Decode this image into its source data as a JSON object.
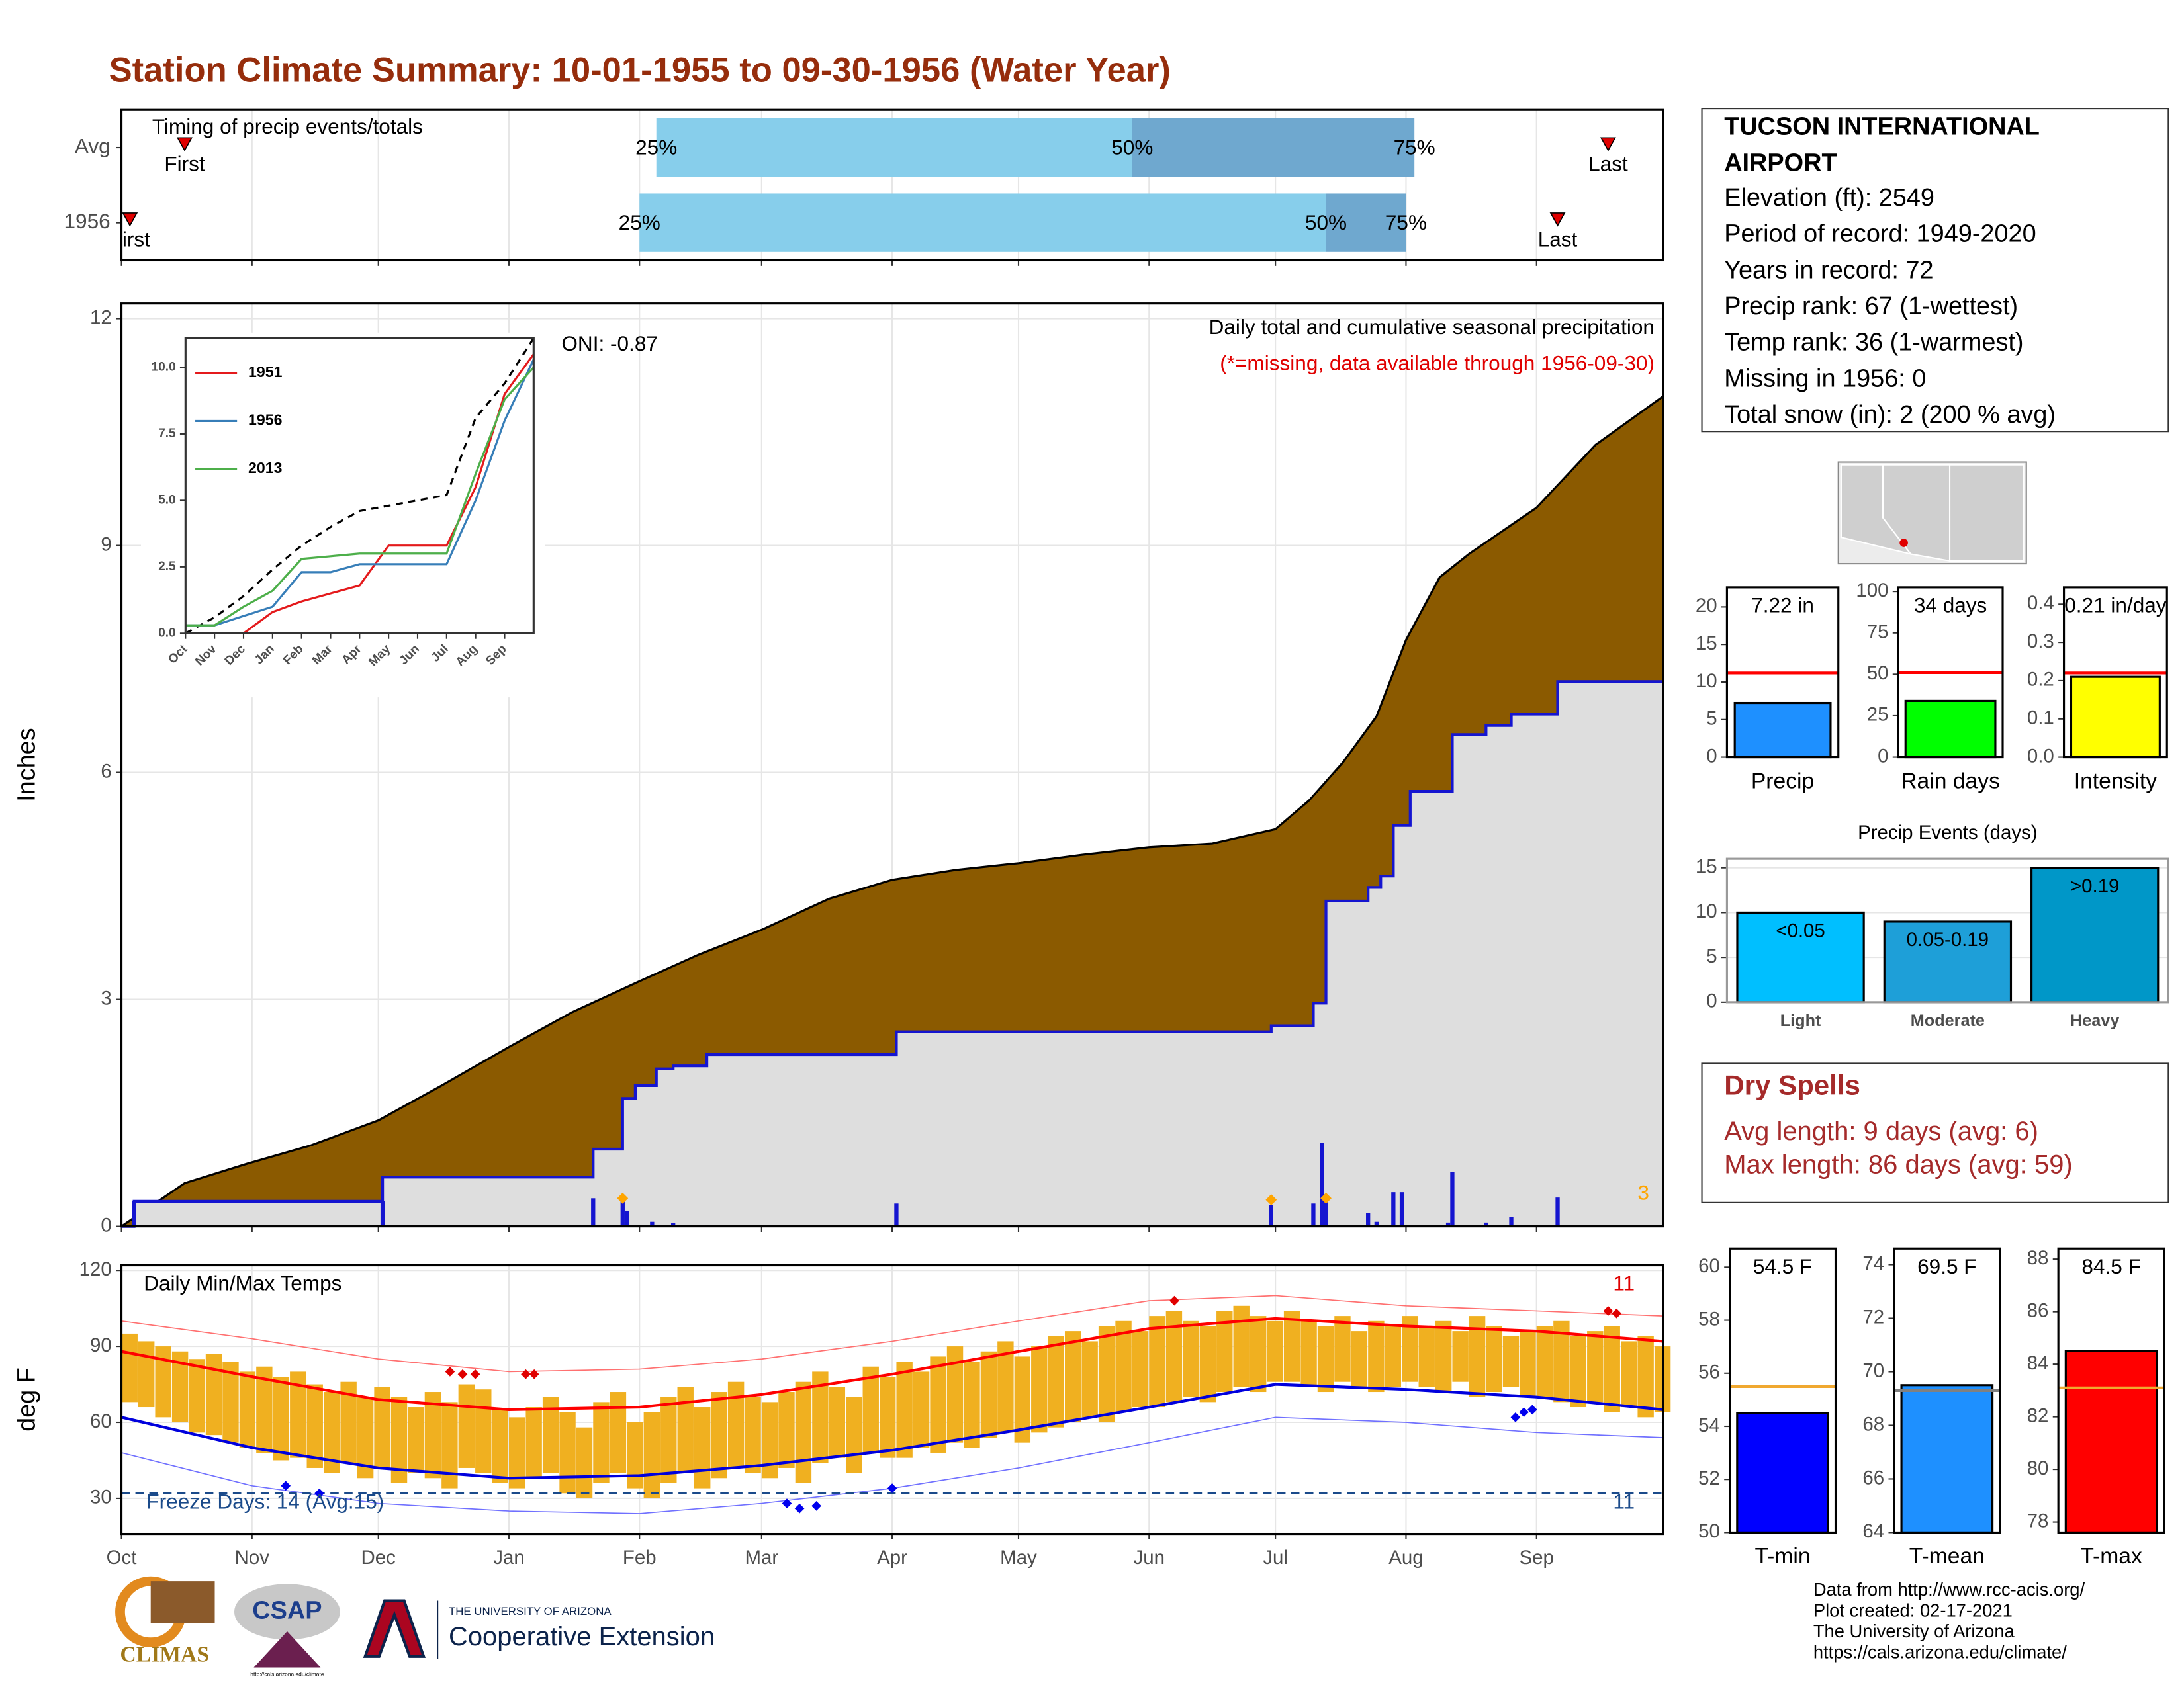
{
  "title": "Station Climate Summary: 10-01-1955 to 09-30-1956 (Water Year)",
  "chart_data": [
    {
      "type": "timeline",
      "title": "Timing of precip events/totals",
      "xlim": [
        0,
        366
      ],
      "xticks": [
        0,
        31,
        61,
        92,
        123,
        152,
        183,
        213,
        244,
        274,
        305,
        336
      ],
      "grid": true,
      "marker_labels": {
        "first": "First",
        "last": "Last",
        "q25": "25%",
        "q50": "50%",
        "q75": "75%"
      },
      "rows": [
        {
          "name": "Avg",
          "first": 15,
          "q25": 127,
          "q50": 240,
          "q75": 307,
          "last": 353
        },
        {
          "name": "1956",
          "first": 2,
          "q25": 123,
          "q50": 286,
          "q75": 305,
          "last": 341
        }
      ],
      "colors": {
        "q25_q50": "#87ceeb",
        "q50_q75": "#6fa8cf",
        "marker": "#e00000"
      }
    },
    {
      "type": "area",
      "title": "Daily total and cumulative seasonal precipitation",
      "subtitle": "(*=missing, data available through 1956-09-30)",
      "annotation": "ONI: -0.87",
      "y_label": "Inches",
      "xlim": [
        0,
        366
      ],
      "ylim": [
        0,
        12.2
      ],
      "xticks": [
        0,
        31,
        61,
        92,
        123,
        152,
        183,
        213,
        244,
        274,
        305,
        336
      ],
      "yticks": [
        0,
        3,
        6,
        9,
        12
      ],
      "grid": true,
      "series": [
        {
          "x": [
            0,
            15,
            30,
            45,
            61,
            76,
            92,
            107,
            123,
            137,
            152,
            168,
            183,
            198,
            213,
            228,
            244,
            259,
            274,
            282,
            290,
            298,
            305,
            313,
            320,
            336,
            350,
            366
          ],
          "values": [
            0,
            0.57,
            0.83,
            1.07,
            1.4,
            1.86,
            2.37,
            2.83,
            3.24,
            3.59,
            3.92,
            4.33,
            4.58,
            4.71,
            4.8,
            4.91,
            5.01,
            5.06,
            5.25,
            5.63,
            6.13,
            6.74,
            7.75,
            8.58,
            8.89,
            9.5,
            10.33,
            10.97
          ],
          "color": "#8b5a00"
        },
        {
          "x": [
            0,
            3,
            62,
            112,
            119,
            122,
            127,
            131,
            139,
            184,
            273,
            283,
            286,
            296,
            299,
            302,
            306,
            316,
            324,
            330,
            341,
            366
          ],
          "values": [
            0,
            0.33,
            0.65,
            1.02,
            1.69,
            1.86,
            2.08,
            2.12,
            2.27,
            2.57,
            2.65,
            2.95,
            4.3,
            4.48,
            4.63,
            5.3,
            5.75,
            6.5,
            6.62,
            6.77,
            7.2,
            7.2
          ],
          "color": "#1515d0",
          "fill": "#dedede",
          "step": true
        }
      ],
      "daily": {
        "x": [
          3,
          62,
          112,
          119,
          120,
          126,
          131,
          139,
          184,
          273,
          283,
          285,
          286,
          296,
          298,
          302,
          304,
          315,
          316,
          324,
          330,
          341
        ],
        "values": [
          0.33,
          0.33,
          0.37,
          0.33,
          0.2,
          0.06,
          0.04,
          0.02,
          0.3,
          0.28,
          0.3,
          1.1,
          0.35,
          0.18,
          0.06,
          0.45,
          0.45,
          0.05,
          0.72,
          0.05,
          0.12,
          0.38
        ],
        "color": "#1515d0"
      },
      "events": {
        "x": [
          119,
          273,
          286
        ],
        "values": [
          0.37,
          0.35,
          0.37
        ],
        "color": "#ffa500"
      },
      "snow_days": 3
    },
    {
      "type": "line",
      "x": [
        0,
        1,
        2,
        3,
        4,
        5,
        6,
        7,
        8,
        9,
        10,
        11,
        12
      ],
      "xlim": [
        0,
        12
      ],
      "ylim": [
        0,
        11.1
      ],
      "xticks": [
        {
          "value": 0,
          "label": "Oct"
        },
        {
          "value": 1,
          "label": "Nov"
        },
        {
          "value": 2,
          "label": "Dec"
        },
        {
          "value": 3,
          "label": "Jan"
        },
        {
          "value": 4,
          "label": "Feb"
        },
        {
          "value": 5,
          "label": "Mar"
        },
        {
          "value": 6,
          "label": "Apr"
        },
        {
          "value": 7,
          "label": "May"
        },
        {
          "value": 8,
          "label": "Jun"
        },
        {
          "value": 9,
          "label": "Jul"
        },
        {
          "value": 10,
          "label": "Aug"
        },
        {
          "value": 11,
          "label": "Sep"
        }
      ],
      "yticks": [
        {
          "value": 0,
          "label": "0.0"
        },
        2.5,
        {
          "value": 5,
          "label": "5.0"
        },
        7.5,
        {
          "value": 10,
          "label": "10.0"
        }
      ],
      "average": {
        "values": [
          0,
          0.6,
          1.4,
          2.4,
          3.3,
          4.0,
          4.6,
          4.8,
          5.0,
          5.2,
          8.1,
          9.4,
          11.1
        ],
        "color": "#000000"
      },
      "series": [
        {
          "name": "1951",
          "color": "#e41a1c",
          "values": [
            0,
            0,
            0,
            0.8,
            1.2,
            1.5,
            1.8,
            3.3,
            3.3,
            3.3,
            5.5,
            9.0,
            10.5
          ]
        },
        {
          "name": "1956",
          "color": "#377eb8",
          "values": [
            0.3,
            0.3,
            0.65,
            1.0,
            2.3,
            2.3,
            2.6,
            2.6,
            2.6,
            2.6,
            5.0,
            8.0,
            10.3
          ]
        },
        {
          "name": "2013",
          "color": "#4daf4a",
          "values": [
            0.3,
            0.3,
            1.0,
            1.6,
            2.8,
            2.9,
            3.0,
            3.0,
            3.0,
            3.0,
            6.0,
            8.8,
            10.0
          ]
        }
      ]
    },
    {
      "type": "range",
      "title": "Daily Min/Max Temps",
      "y_label": "deg F",
      "annotation": "Freeze Days: 14 (Avg:15)",
      "xlim": [
        0,
        366
      ],
      "ylim": [
        16,
        122
      ],
      "xticks": [
        {
          "value": 0,
          "label": "Oct"
        },
        {
          "value": 31,
          "label": "Nov"
        },
        {
          "value": 61,
          "label": "Dec"
        },
        {
          "value": 92,
          "label": "Jan"
        },
        {
          "value": 123,
          "label": "Feb"
        },
        {
          "value": 152,
          "label": "Mar"
        },
        {
          "value": 183,
          "label": "Apr"
        },
        {
          "value": 213,
          "label": "May"
        },
        {
          "value": 244,
          "label": "Jun"
        },
        {
          "value": 274,
          "label": "Jul"
        },
        {
          "value": 305,
          "label": "Aug"
        },
        {
          "value": 336,
          "label": "Sep"
        }
      ],
      "yticks": [
        30,
        60,
        90,
        120
      ],
      "grid": true,
      "freeze": 32,
      "record_high_count": 11,
      "record_low_count": 11,
      "color": "#f0b020",
      "days": [
        0,
        4,
        8,
        12,
        16,
        20,
        24,
        28,
        32,
        36,
        40,
        44,
        48,
        52,
        56,
        60,
        64,
        68,
        72,
        76,
        80,
        84,
        88,
        92,
        96,
        100,
        104,
        108,
        112,
        116,
        120,
        124,
        128,
        132,
        136,
        140,
        144,
        148,
        152,
        156,
        160,
        164,
        168,
        172,
        176,
        180,
        184,
        188,
        192,
        196,
        200,
        204,
        208,
        212,
        216,
        220,
        224,
        228,
        232,
        236,
        240,
        244,
        248,
        252,
        256,
        260,
        264,
        268,
        272,
        276,
        280,
        284,
        288,
        292,
        296,
        300,
        304,
        308,
        312,
        316,
        320,
        324,
        328,
        332,
        336,
        340,
        344,
        348,
        352,
        356,
        360,
        364
      ],
      "highs": [
        95,
        92,
        90,
        88,
        85,
        87,
        84,
        80,
        82,
        78,
        80,
        75,
        72,
        76,
        70,
        74,
        70,
        66,
        72,
        68,
        75,
        73,
        65,
        62,
        66,
        70,
        64,
        58,
        68,
        72,
        60,
        64,
        70,
        74,
        66,
        72,
        76,
        70,
        68,
        72,
        76,
        80,
        74,
        70,
        82,
        78,
        84,
        80,
        86,
        90,
        84,
        88,
        92,
        86,
        90,
        94,
        96,
        92,
        98,
        100,
        96,
        102,
        104,
        100,
        98,
        104,
        106,
        102,
        100,
        104,
        100,
        98,
        102,
        96,
        100,
        98,
        102,
        98,
        100,
        96,
        102,
        98,
        94,
        96,
        98,
        100,
        94,
        96,
        98,
        92,
        94,
        90
      ],
      "lows": [
        68,
        66,
        62,
        60,
        56,
        55,
        52,
        50,
        48,
        45,
        46,
        42,
        40,
        44,
        38,
        42,
        36,
        40,
        38,
        34,
        42,
        40,
        36,
        34,
        38,
        40,
        32,
        30,
        36,
        40,
        34,
        30,
        36,
        40,
        34,
        38,
        42,
        40,
        38,
        42,
        36,
        44,
        46,
        40,
        48,
        46,
        46,
        50,
        48,
        52,
        50,
        54,
        56,
        52,
        56,
        58,
        60,
        62,
        60,
        64,
        66,
        66,
        68,
        70,
        68,
        72,
        74,
        72,
        76,
        76,
        74,
        72,
        76,
        74,
        72,
        74,
        76,
        74,
        72,
        76,
        70,
        72,
        74,
        70,
        70,
        68,
        66,
        68,
        64,
        66,
        62,
        64
      ],
      "normals": {
        "x": [
          0,
          31,
          61,
          92,
          123,
          152,
          183,
          213,
          244,
          274,
          305,
          336,
          366
        ],
        "max": [
          88,
          78,
          69,
          65,
          66,
          71,
          79,
          88,
          97,
          101,
          98,
          96,
          92
        ],
        "min": [
          62,
          50,
          42,
          38,
          39,
          43,
          49,
          57,
          66,
          75,
          73,
          70,
          65
        ],
        "record_max": [
          100,
          93,
          85,
          80,
          81,
          85,
          92,
          100,
          108,
          110,
          106,
          104,
          102
        ],
        "record_min": [
          48,
          35,
          28,
          25,
          24,
          28,
          34,
          42,
          52,
          62,
          60,
          56,
          54
        ],
        "colors": {
          "max": "#ff0000",
          "min": "#0000dd",
          "record_max": "#ff7070",
          "record_min": "#7070ff"
        }
      },
      "record_highs": {
        "x": [
          78,
          81,
          84,
          96,
          98,
          250,
          353,
          355
        ],
        "values": [
          80,
          79,
          79,
          79,
          79,
          108,
          104,
          103
        ],
        "color": "#e00000"
      },
      "record_lows": {
        "x": [
          39,
          47,
          158,
          161,
          165,
          183,
          331,
          333,
          335
        ],
        "values": [
          35,
          32,
          28,
          26,
          27,
          34,
          62,
          64,
          65
        ],
        "color": "#0000ee"
      }
    },
    {
      "type": "bar",
      "categories": [
        "Precip"
      ],
      "values": [
        7.22
      ],
      "value_labels": [
        "7.22 in"
      ],
      "avg": 11.2,
      "avg_color": "#ff0000",
      "colors": [
        "#1e90ff"
      ],
      "ylim": [
        0,
        22.6
      ],
      "yticks": [
        0,
        5,
        10,
        15,
        20
      ]
    },
    {
      "type": "bar",
      "categories": [
        "Rain days"
      ],
      "values": [
        34
      ],
      "value_labels": [
        "34 days"
      ],
      "avg": 51,
      "avg_color": "#ff0000",
      "colors": [
        "#00ff00"
      ],
      "ylim": [
        0,
        102.5
      ],
      "yticks": [
        0,
        25,
        50,
        75,
        100
      ]
    },
    {
      "type": "bar",
      "categories": [
        "Intensity"
      ],
      "values": [
        0.21
      ],
      "value_labels": [
        "0.21 in/day"
      ],
      "avg": 0.22,
      "avg_color": "#ff0000",
      "colors": [
        "#ffff00"
      ],
      "ylim": [
        0,
        0.444
      ],
      "yticks": [
        {
          "value": 0,
          "label": "0.0"
        },
        0.1,
        0.2,
        0.3,
        0.4
      ]
    },
    {
      "type": "bar",
      "title": "Precip Events (days)",
      "categories": [
        "Light",
        "Moderate",
        "Heavy"
      ],
      "values": [
        10,
        9,
        15
      ],
      "value_labels": [
        "<0.05",
        "0.05-0.19",
        ">0.19"
      ],
      "colors": [
        "#00bfff",
        "#1e9fd8",
        "#0097c8"
      ],
      "ylim": [
        0,
        16
      ],
      "yticks": [
        0,
        5,
        10,
        15
      ],
      "grid": true
    },
    {
      "type": "bar",
      "categories": [
        "T-min"
      ],
      "values": [
        54.5
      ],
      "value_labels": [
        "54.5 F"
      ],
      "avg": 55.5,
      "avg_color": "#f0a830",
      "colors": [
        "#0000ff"
      ],
      "ylim": [
        50,
        60.7
      ],
      "yticks": [
        50,
        52,
        54,
        56,
        58,
        60
      ]
    },
    {
      "type": "bar",
      "categories": [
        "T-mean"
      ],
      "values": [
        69.5
      ],
      "value_labels": [
        "69.5 F"
      ],
      "avg": 69.3,
      "avg_color": "#808080",
      "colors": [
        "#1e90ff"
      ],
      "ylim": [
        64,
        74.6
      ],
      "yticks": [
        64,
        66,
        68,
        70,
        72,
        74
      ]
    },
    {
      "type": "bar",
      "categories": [
        "T-max"
      ],
      "values": [
        84.5
      ],
      "value_labels": [
        "84.5 F"
      ],
      "avg": 83.1,
      "avg_color": "#f0a830",
      "colors": [
        "#ff0000"
      ],
      "ylim": [
        77.6,
        88.4
      ],
      "yticks": [
        78,
        80,
        82,
        84,
        86,
        88
      ]
    }
  ],
  "station": {
    "title_lines": [
      "TUCSON INTERNATIONAL",
      "AIRPORT"
    ],
    "lines": [
      "Elevation (ft): 2549",
      "Period of record: 1949-2020",
      "Years in record: 72",
      "Precip rank: 67 (1-wettest)",
      "Temp rank: 36 (1-warmest)",
      "Missing in 1956: 0",
      "Total snow (in): 2 (200 % avg)"
    ]
  },
  "dry_spells": {
    "title": "Dry Spells",
    "lines": [
      "Avg length: 9 days (avg: 6)",
      "Max length: 86 days (avg: 59)"
    ]
  },
  "logos": {
    "climas": "CLIMAS",
    "csap": "CSAP",
    "csap_url": "http://cals.arizona.edu/climate",
    "ua": "THE UNIVERSITY OF ARIZONA",
    "extension": "Cooperative Extension"
  },
  "credits": [
    "Data from http://www.rcc-acis.org/",
    "Plot created: 02-17-2021",
    "The University of Arizona",
    "https://cals.arizona.edu/climate/"
  ]
}
